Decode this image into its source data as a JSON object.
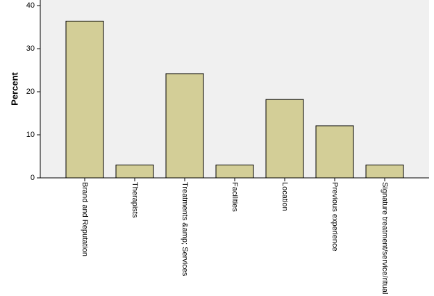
{
  "chart_data": {
    "type": "bar",
    "y_label": "Percent",
    "categories": [
      "Brand and Reputation",
      "Therapists",
      "Treatments &amp; Services",
      "Facilities",
      "Location",
      "Previous experience",
      "Signature treatment/service/ritual"
    ],
    "values": [
      36.4,
      3.0,
      24.2,
      3.0,
      18.2,
      12.1,
      3.0
    ],
    "color": "#d3ce97",
    "ylim": [
      0,
      41.3
    ],
    "yticks": [
      0,
      10,
      20,
      30,
      40
    ]
  }
}
